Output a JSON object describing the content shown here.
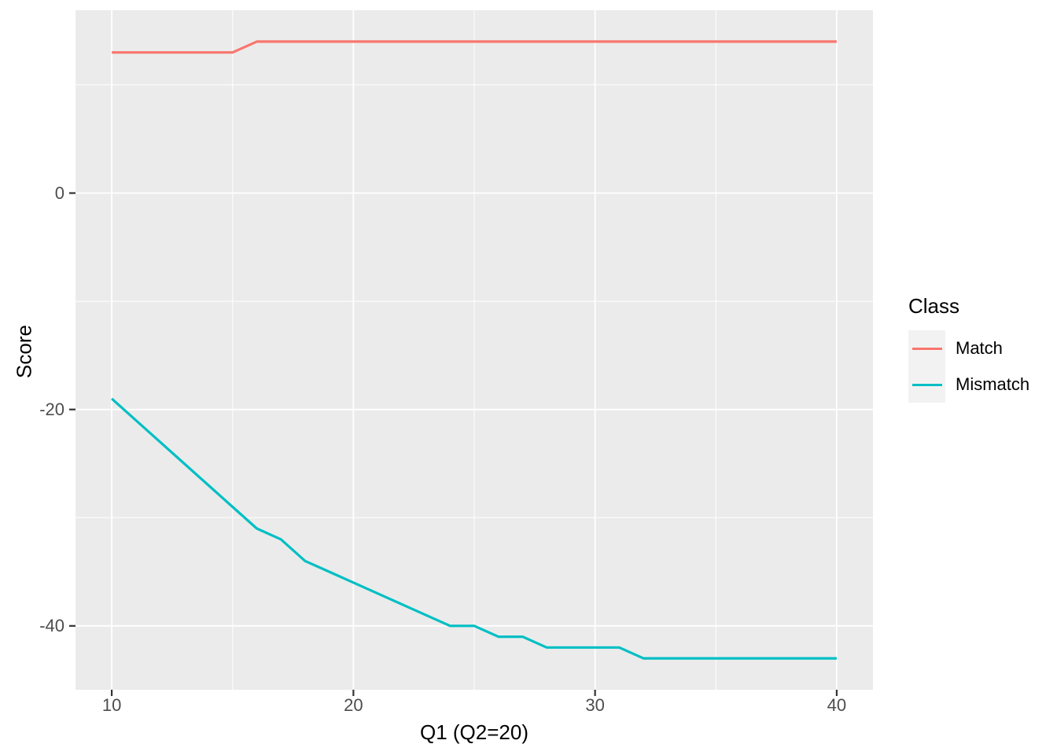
{
  "colors": {
    "background": "#FFFFFF",
    "panel": "#EBEBEB",
    "grid": "#FFFFFF",
    "tick": "#333333",
    "tick_label": "#4D4D4D",
    "title_text": "#000000",
    "legend_text": "#000000",
    "legend_key": "#F2F2F2"
  },
  "chart_data": {
    "type": "line",
    "title": "",
    "xlabel": "Q1 (Q2=20)",
    "ylabel": "Score",
    "x": [
      10,
      11,
      12,
      13,
      14,
      15,
      16,
      17,
      18,
      19,
      20,
      21,
      22,
      23,
      24,
      25,
      26,
      27,
      28,
      29,
      30,
      31,
      32,
      33,
      34,
      35,
      36,
      37,
      38,
      39,
      40
    ],
    "series": [
      {
        "name": "Match",
        "color": "#F8766D",
        "values": [
          13,
          13,
          13,
          13,
          13,
          13,
          14,
          14,
          14,
          14,
          14,
          14,
          14,
          14,
          14,
          14,
          14,
          14,
          14,
          14,
          14,
          14,
          14,
          14,
          14,
          14,
          14,
          14,
          14,
          14,
          14
        ]
      },
      {
        "name": "Mismatch",
        "color": "#00BFC4",
        "values": [
          -19,
          -21,
          -23,
          -25,
          -27,
          -29,
          -31,
          -32,
          -34,
          -35,
          -36,
          -37,
          -38,
          -39,
          -40,
          -40,
          -41,
          -41,
          -42,
          -42,
          -42,
          -42,
          -43,
          -43,
          -43,
          -43,
          -43,
          -43,
          -43,
          -43,
          -43
        ]
      }
    ],
    "xlim": [
      8.5,
      41.5
    ],
    "ylim": [
      -45.9,
      16.9
    ],
    "xticks": {
      "major": [
        10,
        20,
        30,
        40
      ],
      "labels": [
        "10",
        "20",
        "30",
        "40"
      ],
      "minor": [
        15,
        25,
        35
      ]
    },
    "yticks": {
      "major": [
        0,
        -20,
        -40
      ],
      "labels": [
        "0",
        "-20",
        "-40"
      ],
      "minor": [
        10,
        -10,
        -30
      ]
    },
    "grid": "major+minor",
    "legend": {
      "title": "Class",
      "position": "right",
      "entries": [
        "Match",
        "Mismatch"
      ]
    }
  }
}
